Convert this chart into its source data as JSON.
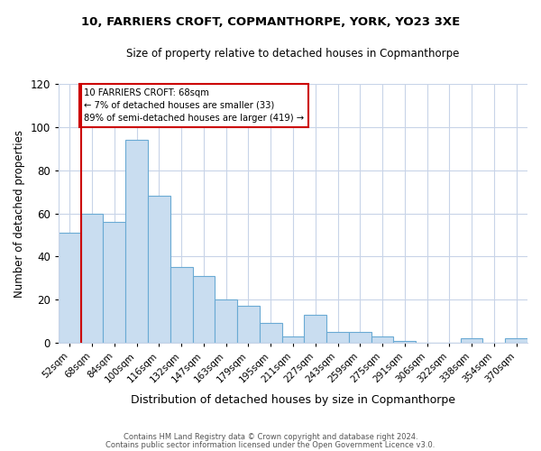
{
  "title": "10, FARRIERS CROFT, COPMANTHORPE, YORK, YO23 3XE",
  "subtitle": "Size of property relative to detached houses in Copmanthorpe",
  "xlabel": "Distribution of detached houses by size in Copmanthorpe",
  "ylabel": "Number of detached properties",
  "bar_labels": [
    "52sqm",
    "68sqm",
    "84sqm",
    "100sqm",
    "116sqm",
    "132sqm",
    "147sqm",
    "163sqm",
    "179sqm",
    "195sqm",
    "211sqm",
    "227sqm",
    "243sqm",
    "259sqm",
    "275sqm",
    "291sqm",
    "306sqm",
    "322sqm",
    "338sqm",
    "354sqm",
    "370sqm"
  ],
  "bar_values": [
    51,
    60,
    56,
    94,
    68,
    35,
    31,
    20,
    17,
    9,
    3,
    13,
    5,
    5,
    3,
    1,
    0,
    0,
    2,
    0,
    2
  ],
  "bar_color": "#c9ddf0",
  "bar_edge_color": "#6aaad4",
  "annotation_title": "10 FARRIERS CROFT: 68sqm",
  "annotation_line1": "← 7% of detached houses are smaller (33)",
  "annotation_line2": "89% of semi-detached houses are larger (419) →",
  "vline_color": "#cc0000",
  "vline_index": 1,
  "ylim": [
    0,
    120
  ],
  "yticks": [
    0,
    20,
    40,
    60,
    80,
    100,
    120
  ],
  "footer1": "Contains HM Land Registry data © Crown copyright and database right 2024.",
  "footer2": "Contains public sector information licensed under the Open Government Licence v3.0.",
  "background_color": "#ffffff",
  "grid_color": "#c8d4e8"
}
